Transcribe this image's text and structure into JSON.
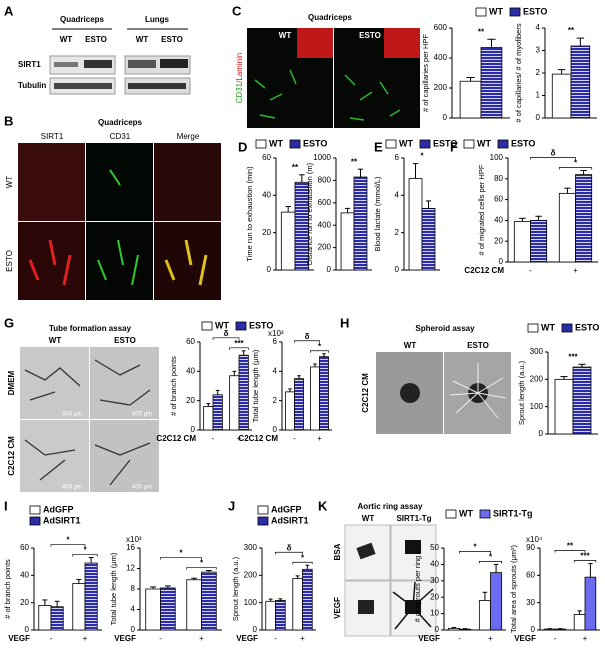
{
  "panel_letters": [
    "A",
    "B",
    "C",
    "D",
    "E",
    "F",
    "G",
    "H",
    "I",
    "J",
    "K"
  ],
  "blot": {
    "tissues": [
      "Quadriceps",
      "Lungs"
    ],
    "groups": [
      "WT",
      "ESTO",
      "WT",
      "ESTO"
    ],
    "proteins": [
      "SIRT1",
      "Tubulin"
    ]
  },
  "micrographs_b": {
    "title": "Quadriceps",
    "columns": [
      "SIRT1",
      "CD31",
      "Merge"
    ],
    "rows": [
      "WT",
      "ESTO"
    ]
  },
  "micrographs_c": {
    "title": "Quadriceps",
    "columns": [
      "WT",
      "ESTO"
    ],
    "stain_green": "CD31",
    "stain_red": "/Laminin"
  },
  "micrographs_g": {
    "title": "Tube formation assay",
    "columns": [
      "WT",
      "ESTO"
    ],
    "rows": [
      "DMEM",
      "C2C12 CM"
    ],
    "scale": "400 μm"
  },
  "micrographs_h": {
    "title": "Spheroid assay",
    "columns": [
      "WT",
      "ESTO"
    ],
    "row": "C2C12 CM"
  },
  "micrographs_k": {
    "title": "Aortic ring assay",
    "columns": [
      "WT",
      "SIRT1-Tg"
    ],
    "rows": [
      "BSA",
      "VEGF"
    ]
  },
  "chart_data": [
    {
      "type": "bar",
      "ylabel": "# of capillaries per HPF",
      "categories": [
        null
      ],
      "legend": "top",
      "series": [
        {
          "name": "WT",
          "color": "#ffffff",
          "values": [
            245
          ],
          "errors": [
            25
          ]
        },
        {
          "name": "ESTO",
          "color": "#2c2ca8",
          "hatch": true,
          "values": [
            470
          ],
          "errors": [
            55
          ]
        }
      ],
      "ylim": [
        0,
        600
      ],
      "yticks": [
        0,
        200,
        400,
        600
      ],
      "annotations": [
        "**"
      ]
    },
    {
      "type": "bar",
      "ylabel": "# of capillaries/ # of myofibers",
      "categories": [
        null
      ],
      "series": [
        {
          "color": "#ffffff",
          "values": [
            1.95
          ],
          "errors": [
            0.2
          ]
        },
        {
          "color": "#2c2ca8",
          "hatch": true,
          "values": [
            3.2
          ],
          "errors": [
            0.35
          ]
        }
      ],
      "ylim": [
        0,
        4
      ],
      "yticks": [
        0,
        1,
        2,
        3,
        4
      ],
      "annotations": [
        "**"
      ]
    },
    {
      "type": "bar",
      "ylabel": "Time run to exhaustion (min)",
      "categories": [
        null
      ],
      "legend": "top",
      "series": [
        {
          "name": "WT",
          "color": "#ffffff",
          "values": [
            31
          ],
          "errors": [
            3
          ]
        },
        {
          "name": "ESTO",
          "color": "#2c2ca8",
          "hatch": true,
          "values": [
            47
          ],
          "errors": [
            4
          ]
        }
      ],
      "ylim": [
        0,
        60
      ],
      "yticks": [
        0,
        20,
        40,
        60
      ],
      "annotations": [
        "**"
      ]
    },
    {
      "type": "bar",
      "ylabel": "Distance run to exhaustion (m)",
      "categories": [
        null
      ],
      "series": [
        {
          "color": "#ffffff",
          "values": [
            510
          ],
          "errors": [
            40
          ]
        },
        {
          "color": "#2c2ca8",
          "hatch": true,
          "values": [
            830
          ],
          "errors": [
            70
          ]
        }
      ],
      "ylim": [
        0,
        1000
      ],
      "yticks": [
        0,
        200,
        400,
        600,
        800,
        1000
      ],
      "annotations": [
        "**"
      ]
    },
    {
      "type": "bar",
      "ylabel": "Blood lactate (mmol/L)",
      "categories": [
        null
      ],
      "legend": "top",
      "series": [
        {
          "name": "WT",
          "color": "#ffffff",
          "values": [
            4.9
          ],
          "errors": [
            0.8
          ]
        },
        {
          "name": "ESTO",
          "color": "#2c2ca8",
          "hatch": true,
          "values": [
            3.3
          ],
          "errors": [
            0.4
          ]
        }
      ],
      "ylim": [
        0,
        6
      ],
      "yticks": [
        0,
        2,
        4,
        6
      ],
      "annotations": [
        "*"
      ]
    },
    {
      "type": "bar",
      "ylabel": "# of migrated cells per HPF",
      "xlabel": "C2C12 CM",
      "categories": [
        "-",
        "+"
      ],
      "legend": "top",
      "series": [
        {
          "name": "WT",
          "color": "#ffffff",
          "values": [
            39,
            66
          ],
          "errors": [
            3,
            5
          ]
        },
        {
          "name": "ESTO",
          "color": "#2c2ca8",
          "hatch": true,
          "values": [
            40,
            84
          ],
          "errors": [
            4,
            4
          ]
        }
      ],
      "ylim": [
        0,
        100
      ],
      "yticks": [
        0,
        20,
        40,
        60,
        80,
        100
      ],
      "annotations": [
        "δ",
        "*"
      ]
    },
    {
      "type": "bar",
      "ylabel": "# of branch points",
      "xlabel": "C2C12 CM",
      "categories": [
        "-",
        "+"
      ],
      "legend": "top",
      "series": [
        {
          "name": "WT",
          "color": "#ffffff",
          "values": [
            16,
            37
          ],
          "errors": [
            2,
            3
          ]
        },
        {
          "name": "ESTO",
          "color": "#2c2ca8",
          "hatch": true,
          "values": [
            24,
            51
          ],
          "errors": [
            3,
            3
          ]
        }
      ],
      "ylim": [
        0,
        60
      ],
      "yticks": [
        0,
        20,
        40,
        60
      ],
      "annotations": [
        "δ",
        "***"
      ]
    },
    {
      "type": "bar",
      "ylabel": "Total tube length (μm)",
      "scale_label": "x10³",
      "xlabel": "C2C12 CM",
      "categories": [
        "-",
        "+"
      ],
      "series": [
        {
          "color": "#ffffff",
          "values": [
            2.6,
            4.3
          ],
          "errors": [
            0.2,
            0.2
          ]
        },
        {
          "color": "#2c2ca8",
          "hatch": true,
          "values": [
            3.5,
            5.0
          ],
          "errors": [
            0.2,
            0.2
          ]
        }
      ],
      "ylim": [
        0,
        6
      ],
      "yticks": [
        0,
        2,
        4,
        6
      ],
      "annotations": [
        "δ",
        "*"
      ]
    },
    {
      "type": "bar",
      "ylabel": "Sprout length (a.u.)",
      "categories": [
        null
      ],
      "legend": "top",
      "series": [
        {
          "name": "WT",
          "color": "#ffffff",
          "values": [
            200
          ],
          "errors": [
            10
          ]
        },
        {
          "name": "ESTO",
          "color": "#2c2ca8",
          "hatch": true,
          "values": [
            245
          ],
          "errors": [
            10
          ]
        }
      ],
      "ylim": [
        0,
        300
      ],
      "yticks": [
        0,
        100,
        200,
        300
      ],
      "annotations": [
        "***"
      ]
    },
    {
      "type": "bar",
      "ylabel": "# of branch points",
      "xlabel": "VEGF",
      "categories": [
        "-",
        "+"
      ],
      "legend": "top-left",
      "series": [
        {
          "name": "AdGFP",
          "color": "#ffffff",
          "values": [
            18,
            34
          ],
          "errors": [
            4,
            3
          ]
        },
        {
          "name": "AdSIRT1",
          "color": "#2c2ca8",
          "hatch": true,
          "values": [
            17,
            49
          ],
          "errors": [
            4,
            4
          ]
        }
      ],
      "ylim": [
        0,
        60
      ],
      "yticks": [
        0,
        20,
        40,
        60
      ],
      "annotations": [
        "*",
        "*"
      ]
    },
    {
      "type": "bar",
      "ylabel": "Total tube length (μm)",
      "scale_label": "x10³",
      "xlabel": "VEGF",
      "categories": [
        "-",
        "+"
      ],
      "series": [
        {
          "color": "#ffffff",
          "values": [
            8.0,
            9.8
          ],
          "errors": [
            0.4,
            0.3
          ]
        },
        {
          "color": "#2c2ca8",
          "hatch": true,
          "values": [
            8.2,
            11.3
          ],
          "errors": [
            0.4,
            0.3
          ]
        }
      ],
      "ylim": [
        0,
        16
      ],
      "yticks": [
        0,
        4,
        8,
        12,
        16
      ],
      "annotations": [
        "*",
        "*"
      ]
    },
    {
      "type": "bar",
      "ylabel": "Sprout length (a.u.)",
      "xlabel": "VEGF",
      "categories": [
        "-",
        "+"
      ],
      "legend": "top-left",
      "series": [
        {
          "name": "AdGFP",
          "color": "#ffffff",
          "values": [
            105,
            188
          ],
          "errors": [
            8,
            10
          ]
        },
        {
          "name": "AdSIRT1",
          "color": "#2c2ca8",
          "hatch": true,
          "values": [
            108,
            222
          ],
          "errors": [
            6,
            15
          ]
        }
      ],
      "ylim": [
        0,
        300
      ],
      "yticks": [
        0,
        100,
        200,
        300
      ],
      "annotations": [
        "δ",
        "*"
      ]
    },
    {
      "type": "bar",
      "ylabel": "# of sprouts per ring",
      "xlabel": "VEGF",
      "categories": [
        "-",
        "+"
      ],
      "legend": "top",
      "series": [
        {
          "name": "WT",
          "color": "#ffffff",
          "values": [
            1,
            18
          ],
          "errors": [
            0.5,
            5
          ]
        },
        {
          "name": "SIRT1-Tg",
          "color": "#6b6bf0",
          "values": [
            0.5,
            35
          ],
          "errors": [
            0.3,
            5
          ]
        }
      ],
      "ylim": [
        0,
        50
      ],
      "yticks": [
        0,
        10,
        20,
        30,
        40,
        50
      ],
      "annotations": [
        "*",
        "*"
      ]
    },
    {
      "type": "bar",
      "ylabel": "Total area of sprouts (μm²)",
      "scale_label": "x10⁴",
      "xlabel": "VEGF",
      "categories": [
        "-",
        "+"
      ],
      "series": [
        {
          "color": "#ffffff",
          "values": [
            1,
            17
          ],
          "errors": [
            0.5,
            4
          ]
        },
        {
          "color": "#6b6bf0",
          "values": [
            1,
            58
          ],
          "errors": [
            0.5,
            15
          ]
        }
      ],
      "ylim": [
        0,
        90
      ],
      "yticks": [
        0,
        30,
        60,
        90
      ],
      "annotations": [
        "**",
        "***"
      ]
    }
  ]
}
